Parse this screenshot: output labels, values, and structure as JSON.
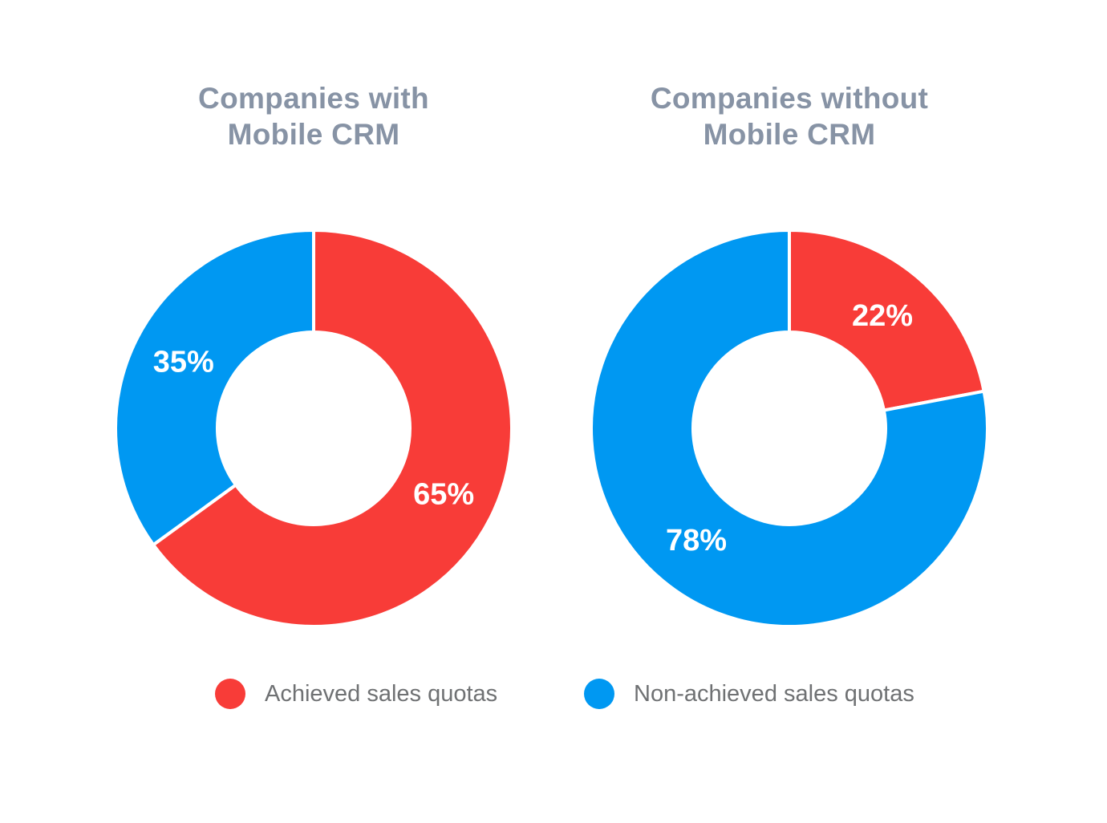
{
  "page": {
    "background": "#ffffff"
  },
  "colors": {
    "achieved": "#f83c38",
    "non_achieved": "#0098f2",
    "title_text": "#8793a5",
    "legend_text": "#6f7173",
    "slice_label_text": "#ffffff",
    "slice_divider": "#ffffff"
  },
  "legend": {
    "items": [
      {
        "key": "achieved",
        "label": "Achieved sales quotas",
        "color": "#f83c38"
      },
      {
        "key": "non_achieved",
        "label": "Non-achieved sales quotas",
        "color": "#0098f2"
      }
    ]
  },
  "chart_data": [
    {
      "type": "pie",
      "subtype": "donut",
      "title": "Companies with Mobile CRM",
      "title_lines": [
        "Companies with",
        "Mobile CRM"
      ],
      "start_angle_deg": 0,
      "direction": "clockwise",
      "legend_position": "bottom",
      "slices": [
        {
          "series": "Achieved sales quotas",
          "value": 65,
          "label": "65%",
          "color": "#f83c38"
        },
        {
          "series": "Non-achieved sales quotas",
          "value": 35,
          "label": "35%",
          "color": "#0098f2"
        }
      ]
    },
    {
      "type": "pie",
      "subtype": "donut",
      "title": "Companies without Mobile CRM",
      "title_lines": [
        "Companies without",
        "Mobile CRM"
      ],
      "start_angle_deg": 0,
      "direction": "clockwise",
      "legend_position": "bottom",
      "slices": [
        {
          "series": "Achieved sales quotas",
          "value": 22,
          "label": "22%",
          "color": "#f83c38"
        },
        {
          "series": "Non-achieved sales quotas",
          "value": 78,
          "label": "78%",
          "color": "#0098f2"
        }
      ]
    }
  ]
}
